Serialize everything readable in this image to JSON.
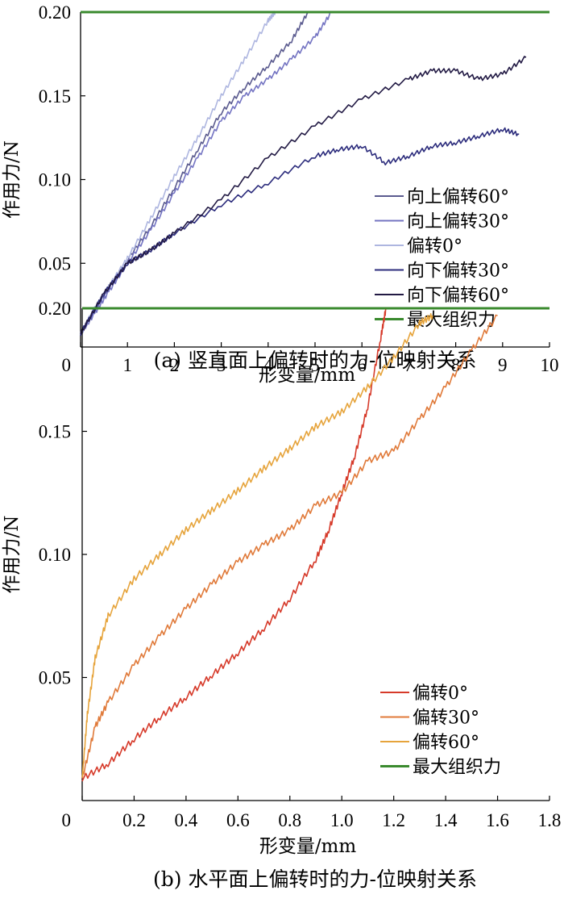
{
  "chart_data": [
    {
      "type": "line",
      "caption": "(a)  竖直面上偏转时的力-位映射关系",
      "xlabel": "形变量/mm",
      "ylabel": "作用力/N",
      "xlim": [
        0,
        10
      ],
      "ylim": [
        0,
        0.2
      ],
      "xticks": [
        "0",
        "1",
        "2",
        "3",
        "4",
        "5",
        "6",
        "7",
        "8",
        "9",
        "10"
      ],
      "yticks": [
        "0.05",
        "0.10",
        "0.15",
        "0.20"
      ],
      "legend_position": "bottom-right",
      "grid": false,
      "series": [
        {
          "name": "向上偏转60°",
          "color": "#5b5b8f",
          "x": [
            0,
            0.3,
            0.6,
            1.0,
            1.5,
            2.0,
            2.5,
            3.0,
            3.5,
            4.0,
            4.5,
            4.85
          ],
          "y": [
            0.008,
            0.022,
            0.035,
            0.052,
            0.072,
            0.095,
            0.118,
            0.14,
            0.155,
            0.168,
            0.183,
            0.2
          ]
        },
        {
          "name": "向上偏转30°",
          "color": "#7474c2",
          "x": [
            0,
            0.3,
            0.6,
            1.0,
            1.5,
            2.0,
            2.5,
            3.0,
            3.5,
            4.0,
            4.5,
            5.0,
            5.35
          ],
          "y": [
            0.008,
            0.02,
            0.033,
            0.05,
            0.07,
            0.092,
            0.113,
            0.135,
            0.15,
            0.16,
            0.172,
            0.185,
            0.2
          ]
        },
        {
          "name": "偏转0°",
          "color": "#aeb6e0",
          "x": [
            0,
            0.3,
            0.6,
            1.0,
            1.5,
            2.0,
            2.5,
            3.0,
            3.5,
            4.0,
            4.15
          ],
          "y": [
            0.008,
            0.023,
            0.036,
            0.053,
            0.077,
            0.102,
            0.125,
            0.15,
            0.172,
            0.195,
            0.2
          ]
        },
        {
          "name": "向下偏转30°",
          "color": "#2c2c7c",
          "x": [
            0,
            0.5,
            1.0,
            1.5,
            2.0,
            3.0,
            4.0,
            5.0,
            5.5,
            6.0,
            6.5,
            7.0,
            7.5,
            8.0,
            8.5,
            9.0,
            9.35
          ],
          "y": [
            0.008,
            0.032,
            0.05,
            0.058,
            0.068,
            0.085,
            0.098,
            0.114,
            0.118,
            0.12,
            0.11,
            0.114,
            0.12,
            0.122,
            0.126,
            0.13,
            0.127
          ]
        },
        {
          "name": "向下偏转60°",
          "color": "#221a44",
          "x": [
            0,
            0.5,
            1.0,
            1.5,
            2.0,
            3.0,
            4.0,
            5.0,
            6.0,
            7.0,
            7.5,
            8.0,
            8.5,
            9.0,
            9.5
          ],
          "y": [
            0.008,
            0.032,
            0.05,
            0.058,
            0.068,
            0.088,
            0.113,
            0.132,
            0.148,
            0.16,
            0.165,
            0.165,
            0.16,
            0.163,
            0.173
          ]
        },
        {
          "name": "最大组织力",
          "color": "#3a8a2e",
          "x": [
            0,
            10
          ],
          "y": [
            0.2,
            0.2
          ]
        }
      ]
    },
    {
      "type": "line",
      "caption": "(b)  水平面上偏转时的力-位映射关系",
      "xlabel": "形变量/mm",
      "ylabel": "作用力/N",
      "xlim": [
        0,
        1.8
      ],
      "ylim": [
        0,
        0.2
      ],
      "xticks": [
        "0",
        "0.2",
        "0.4",
        "0.6",
        "0.8",
        "1.0",
        "1.2",
        "1.4",
        "1.6",
        "1.8"
      ],
      "yticks": [
        "0.05",
        "0.10",
        "0.15",
        "0.20"
      ],
      "legend_position": "bottom-right",
      "grid": false,
      "series": [
        {
          "name": "偏转0°",
          "color": "#d63a2a",
          "x": [
            0,
            0.1,
            0.2,
            0.3,
            0.4,
            0.5,
            0.6,
            0.7,
            0.8,
            0.9,
            0.95,
            1.0,
            1.05,
            1.1,
            1.15,
            1.17
          ],
          "y": [
            0.009,
            0.015,
            0.025,
            0.034,
            0.042,
            0.051,
            0.06,
            0.07,
            0.082,
            0.098,
            0.11,
            0.125,
            0.14,
            0.16,
            0.188,
            0.2
          ]
        },
        {
          "name": "偏转30°",
          "color": "#e07a3a",
          "x": [
            0,
            0.05,
            0.1,
            0.2,
            0.3,
            0.4,
            0.5,
            0.6,
            0.7,
            0.8,
            0.9,
            1.0,
            1.1,
            1.2,
            1.3,
            1.4,
            1.5,
            1.6
          ],
          "y": [
            0.009,
            0.03,
            0.04,
            0.055,
            0.067,
            0.078,
            0.088,
            0.097,
            0.104,
            0.11,
            0.12,
            0.125,
            0.138,
            0.142,
            0.155,
            0.168,
            0.183,
            0.197
          ]
        },
        {
          "name": "偏转60°",
          "color": "#e6a43c",
          "x": [
            0,
            0.02,
            0.05,
            0.1,
            0.2,
            0.3,
            0.4,
            0.5,
            0.6,
            0.7,
            0.8,
            0.9,
            1.0,
            1.1,
            1.2,
            1.3,
            1.35
          ],
          "y": [
            0.009,
            0.035,
            0.058,
            0.075,
            0.09,
            0.1,
            0.11,
            0.118,
            0.126,
            0.135,
            0.143,
            0.152,
            0.158,
            0.168,
            0.18,
            0.194,
            0.197
          ]
        },
        {
          "name": "最大组织力",
          "color": "#3a8a2e",
          "x": [
            0,
            1.8
          ],
          "y": [
            0.2,
            0.2
          ]
        }
      ]
    }
  ]
}
